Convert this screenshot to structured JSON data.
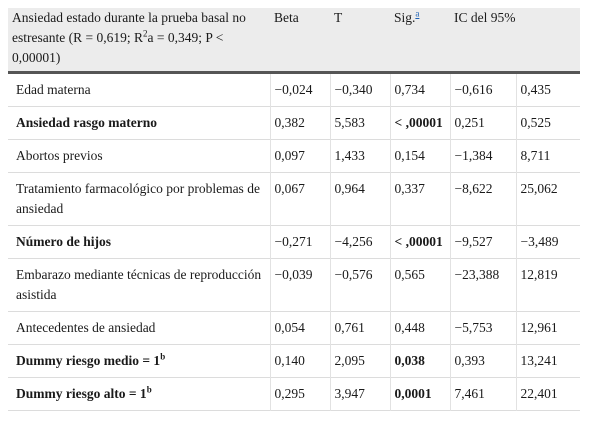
{
  "header": {
    "title_pre": "Ansiedad estado durante la prueba basal no estresante (R = 0,619; R",
    "title_sup": "2",
    "title_post": "a = 0,349; P < 0,00001)",
    "beta": "Beta",
    "t": "T",
    "sig": "Sig.",
    "sig_note": "a",
    "ic": "IC del 95%"
  },
  "rows": [
    {
      "label": "Edad materna",
      "sup": "",
      "beta": "−0,024",
      "t": "−0,340",
      "sig": "0,734",
      "lo": "−0,616",
      "hi": "0,435",
      "bold_label": false,
      "bold_sig": false
    },
    {
      "label": "Ansiedad rasgo materno",
      "sup": "",
      "beta": "0,382",
      "t": "5,583",
      "sig": "< ,00001",
      "lo": "0,251",
      "hi": "0,525",
      "bold_label": true,
      "bold_sig": true
    },
    {
      "label": "Abortos previos",
      "sup": "",
      "beta": "0,097",
      "t": "1,433",
      "sig": "0,154",
      "lo": "−1,384",
      "hi": "8,711",
      "bold_label": false,
      "bold_sig": false
    },
    {
      "label": "Tratamiento farmacológico por problemas de ansiedad",
      "sup": "",
      "beta": "0,067",
      "t": "0,964",
      "sig": "0,337",
      "lo": "−8,622",
      "hi": "25,062",
      "bold_label": false,
      "bold_sig": false
    },
    {
      "label": "Número de hijos",
      "sup": "",
      "beta": "−0,271",
      "t": "−4,256",
      "sig": "< ,00001",
      "lo": "−9,527",
      "hi": "−3,489",
      "bold_label": true,
      "bold_sig": true
    },
    {
      "label": "Embarazo mediante técnicas de reproducción asistida",
      "sup": "",
      "beta": "−0,039",
      "t": "−0,576",
      "sig": "0,565",
      "lo": "−23,388",
      "hi": "12,819",
      "bold_label": false,
      "bold_sig": false
    },
    {
      "label": "Antecedentes de ansiedad",
      "sup": "",
      "beta": "0,054",
      "t": "0,761",
      "sig": "0,448",
      "lo": "−5,753",
      "hi": "12,961",
      "bold_label": false,
      "bold_sig": false
    },
    {
      "label": "Dummy riesgo medio = 1",
      "sup": "b",
      "beta": "0,140",
      "t": "2,095",
      "sig": "0,038",
      "lo": "0,393",
      "hi": "13,241",
      "bold_label": true,
      "bold_sig": true
    },
    {
      "label": "Dummy riesgo alto = 1",
      "sup": "b",
      "beta": "0,295",
      "t": "3,947",
      "sig": "0,0001",
      "lo": "7,461",
      "hi": "22,401",
      "bold_label": true,
      "bold_sig": true
    }
  ]
}
